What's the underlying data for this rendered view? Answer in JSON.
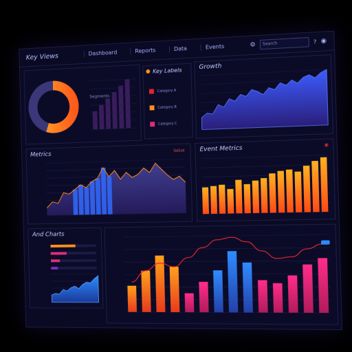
{
  "header": {
    "title": "Key Views",
    "menu": [
      "Dashboard",
      "Reports",
      "Data",
      "Events"
    ],
    "search_placeholder": "Search"
  },
  "panels": {
    "donut": {
      "title": "",
      "legend": "Segments",
      "fill_fraction": 0.55,
      "colors": [
        "#ff8a1c",
        "#3b3778"
      ]
    },
    "small_bars": {
      "values": [
        3,
        4,
        5,
        6,
        7,
        8
      ]
    },
    "legend_box": {
      "title": "Key Labels",
      "items": [
        {
          "label": "Category A",
          "color": "#e0262c"
        },
        {
          "label": "Category B",
          "color": "#ff8f1c"
        },
        {
          "label": "Category C",
          "color": "#e02d7c"
        }
      ]
    },
    "top_area": {
      "title": "Growth",
      "values": [
        22,
        30,
        28,
        45,
        40,
        55,
        50,
        62,
        58,
        70,
        66,
        60,
        72,
        68,
        80,
        75,
        84,
        78,
        88,
        92,
        86,
        95,
        100
      ]
    },
    "mid_left": {
      "title": "Metrics",
      "legend": "Value",
      "values": [
        10,
        18,
        16,
        30,
        28,
        34,
        40,
        36,
        44,
        48,
        62,
        50,
        58,
        46,
        55,
        48,
        52,
        60,
        54,
        66,
        58,
        50,
        44,
        48,
        40
      ]
    },
    "mid_right": {
      "title": "Event Metrics",
      "values": [
        48,
        50,
        52,
        44,
        60,
        52,
        58,
        62,
        70,
        74,
        76,
        72,
        82,
        90,
        96
      ]
    },
    "bottom_left": {
      "title": "And Charts",
      "hbars": [
        {
          "value": 0.55,
          "color": "#ff8f1c"
        },
        {
          "value": 0.35,
          "color": "#e02d7c"
        },
        {
          "value": 0.2,
          "color": "#e02d7c"
        },
        {
          "value": 0.15,
          "color": "#7b2cc2"
        }
      ],
      "area": [
        18,
        22,
        20,
        32,
        28,
        36,
        40,
        34,
        44,
        50,
        48,
        58,
        66
      ]
    },
    "bottom_right": {
      "bars": [
        {
          "value": 35,
          "color": "orange"
        },
        {
          "value": 55,
          "color": "orange"
        },
        {
          "value": 75,
          "color": "orange"
        },
        {
          "value": 60,
          "color": "orange"
        },
        {
          "value": 25,
          "color": "pink"
        },
        {
          "value": 40,
          "color": "pink"
        },
        {
          "value": 55,
          "color": "blue"
        },
        {
          "value": 80,
          "color": "blue"
        },
        {
          "value": 65,
          "color": "blue"
        },
        {
          "value": 42,
          "color": "pink"
        },
        {
          "value": 38,
          "color": "pink"
        },
        {
          "value": 48,
          "color": "pink"
        },
        {
          "value": 62,
          "color": "pink"
        },
        {
          "value": 70,
          "color": "pink"
        }
      ],
      "curve": [
        40,
        55,
        65,
        60,
        72,
        85,
        95,
        98,
        92,
        80,
        70,
        72,
        82,
        88
      ]
    }
  }
}
